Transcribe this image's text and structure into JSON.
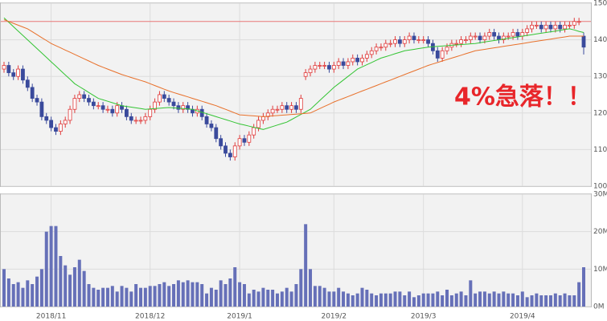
{
  "chart_data": [
    {
      "type": "candlestick",
      "annotation": "4%急落！！",
      "up_color": "#e03a3a",
      "down_color": "#3a4a9c",
      "hline": 145,
      "hline_color": "#e87878",
      "ylim": [
        100,
        150
      ],
      "yticks": [
        100,
        110,
        120,
        130,
        140,
        150
      ],
      "grid": true,
      "open": [
        132,
        133,
        131,
        130,
        132,
        129,
        127,
        124,
        123,
        119,
        118,
        116,
        115,
        117,
        118,
        121,
        124,
        125,
        124,
        123,
        122,
        122,
        121,
        121,
        120,
        122,
        121,
        119,
        118,
        118,
        118,
        119,
        121,
        123,
        125,
        124,
        123,
        122,
        121,
        122,
        121,
        120,
        121,
        119,
        117,
        116,
        113,
        111,
        109,
        108,
        111,
        113,
        112,
        114,
        116,
        118,
        119,
        120,
        121,
        121,
        122,
        121,
        122,
        121,
        130,
        131,
        132,
        133,
        133,
        133,
        132,
        133,
        134,
        133,
        134,
        135,
        134,
        135,
        136,
        137,
        138,
        138,
        139,
        139,
        140,
        139,
        140,
        141,
        140,
        140,
        140,
        139,
        137,
        135,
        137,
        138,
        139,
        139,
        140,
        140,
        141,
        141,
        140,
        141,
        142,
        141,
        140,
        141,
        141,
        142,
        141,
        142,
        143,
        144,
        144,
        143,
        144,
        143,
        144,
        143,
        144,
        144,
        145,
        141
      ],
      "high": [
        134,
        134,
        132,
        133,
        133,
        130,
        128,
        125,
        124,
        120,
        119,
        117,
        118,
        119,
        122,
        125,
        126,
        126,
        125,
        124,
        123,
        123,
        122,
        122,
        123,
        123,
        122,
        120,
        119,
        119,
        120,
        122,
        124,
        126,
        126,
        125,
        124,
        123,
        123,
        123,
        122,
        122,
        122,
        120,
        118,
        117,
        114,
        112,
        110,
        112,
        114,
        114,
        115,
        117,
        119,
        120,
        121,
        122,
        122,
        123,
        123,
        123,
        123,
        125,
        132,
        133,
        134,
        134,
        134,
        134,
        134,
        135,
        135,
        135,
        136,
        136,
        136,
        137,
        138,
        139,
        139,
        140,
        140,
        141,
        141,
        141,
        142,
        142,
        141,
        141,
        141,
        140,
        138,
        138,
        139,
        140,
        140,
        141,
        141,
        142,
        142,
        142,
        142,
        143,
        143,
        142,
        142,
        142,
        143,
        143,
        143,
        144,
        145,
        145,
        145,
        145,
        145,
        145,
        145,
        145,
        145,
        146,
        146,
        142
      ],
      "low": [
        131,
        130,
        129,
        129,
        128,
        126,
        123,
        122,
        118,
        117,
        115,
        114,
        114,
        116,
        117,
        120,
        123,
        123,
        122,
        121,
        121,
        120,
        120,
        119,
        119,
        120,
        118,
        117,
        117,
        117,
        117,
        118,
        120,
        122,
        123,
        122,
        121,
        120,
        120,
        120,
        119,
        119,
        118,
        116,
        115,
        112,
        110,
        108,
        107,
        107,
        110,
        111,
        111,
        113,
        115,
        117,
        118,
        119,
        120,
        120,
        120,
        120,
        120,
        120,
        129,
        130,
        131,
        132,
        132,
        131,
        131,
        132,
        132,
        132,
        133,
        133,
        133,
        134,
        135,
        136,
        137,
        137,
        138,
        138,
        138,
        138,
        139,
        139,
        139,
        139,
        138,
        136,
        134,
        134,
        136,
        137,
        138,
        138,
        139,
        139,
        140,
        139,
        139,
        140,
        140,
        139,
        139,
        140,
        140,
        140,
        140,
        141,
        142,
        143,
        142,
        142,
        142,
        142,
        142,
        142,
        143,
        143,
        144,
        136
      ],
      "close": [
        133,
        131,
        130,
        132,
        129,
        127,
        124,
        123,
        119,
        118,
        116,
        115,
        117,
        118,
        121,
        124,
        125,
        124,
        123,
        122,
        122,
        121,
        121,
        120,
        122,
        121,
        119,
        118,
        118,
        118,
        119,
        121,
        123,
        125,
        124,
        123,
        122,
        121,
        122,
        121,
        120,
        121,
        119,
        117,
        116,
        113,
        111,
        109,
        108,
        111,
        113,
        112,
        114,
        116,
        118,
        119,
        120,
        121,
        121,
        122,
        121,
        122,
        121,
        124,
        131,
        132,
        133,
        133,
        133,
        132,
        133,
        134,
        133,
        134,
        135,
        134,
        135,
        136,
        137,
        138,
        138,
        139,
        139,
        140,
        139,
        140,
        141,
        140,
        140,
        140,
        139,
        137,
        135,
        137,
        138,
        139,
        139,
        140,
        140,
        141,
        141,
        140,
        141,
        142,
        141,
        140,
        141,
        141,
        142,
        141,
        142,
        143,
        144,
        144,
        143,
        144,
        143,
        144,
        143,
        144,
        144,
        145,
        145,
        138
      ],
      "ma_lines": [
        {
          "color": "#33c433",
          "values": [
            146,
            144.8,
            143.6,
            142.4,
            141.2,
            140,
            138.8,
            137.6,
            136.4,
            135.2,
            134,
            132.8,
            131.6,
            130.4,
            129.2,
            128,
            127.2,
            126.4,
            125.6,
            124.8,
            124,
            123.6,
            123.2,
            122.8,
            122.4,
            122,
            121.8,
            121.6,
            121.4,
            121.2,
            121,
            121.1,
            121.2,
            121.3,
            121.4,
            121.5,
            121.4,
            121.3,
            121.2,
            121.1,
            121,
            120.6,
            120.2,
            119.8,
            119.4,
            119,
            118.6,
            118.2,
            117.8,
            117.4,
            117,
            116.7,
            116.4,
            116.1,
            115.8,
            115.5,
            115.9,
            116.3,
            116.7,
            117.1,
            117.5,
            118.2,
            118.9,
            119.6,
            120.3,
            121,
            122.2,
            123.4,
            124.6,
            125.8,
            127,
            128,
            129,
            130,
            131,
            132,
            132.6,
            133.2,
            133.8,
            134.4,
            135,
            135.4,
            135.8,
            136.2,
            136.6,
            137,
            137.2,
            137.4,
            137.6,
            137.8,
            138,
            138.1,
            138.2,
            138.3,
            138.4,
            138.5,
            138.6,
            138.7,
            138.8,
            138.9,
            139,
            139.2,
            139.4,
            139.6,
            139.8,
            140,
            140.2,
            140.4,
            140.6,
            140.8,
            141,
            141.2,
            141.4,
            141.6,
            141.8,
            142,
            142.2,
            142.4,
            142.6,
            142.8,
            143,
            142.7,
            142.3,
            142
          ]
        },
        {
          "color": "#e8702a",
          "values": [
            145.5,
            145,
            144.5,
            144,
            143.5,
            143,
            142.2,
            141.4,
            140.6,
            139.8,
            139,
            138.4,
            137.8,
            137.2,
            136.6,
            136,
            135.4,
            134.8,
            134.2,
            133.6,
            133,
            132.5,
            132,
            131.5,
            131,
            130.5,
            130.1,
            129.7,
            129.3,
            128.9,
            128.5,
            128,
            127.5,
            127,
            126.5,
            126,
            125.6,
            125.2,
            124.8,
            124.4,
            124,
            123.6,
            123.2,
            122.8,
            122.4,
            122,
            121.5,
            121,
            120.5,
            120,
            119.5,
            119.4,
            119.3,
            119.2,
            119.1,
            119,
            119.1,
            119.2,
            119.3,
            119.4,
            119.5,
            119.6,
            119.7,
            119.8,
            119.9,
            120,
            120.6,
            121.2,
            121.8,
            122.4,
            123,
            123.5,
            124,
            124.5,
            125,
            125.5,
            126,
            126.5,
            127,
            127.5,
            128,
            128.5,
            129,
            129.5,
            130,
            130.5,
            131,
            131.5,
            132,
            132.5,
            133,
            133.4,
            133.8,
            134.2,
            134.6,
            135,
            135.4,
            135.8,
            136.2,
            136.6,
            137,
            137.2,
            137.4,
            137.6,
            137.8,
            138,
            138.2,
            138.4,
            138.6,
            138.8,
            139,
            139.2,
            139.4,
            139.6,
            139.8,
            140,
            140.2,
            140.4,
            140.6,
            140.8,
            141,
            141,
            141,
            141
          ]
        }
      ]
    },
    {
      "type": "bar",
      "color": "#6670b8",
      "categories": [
        null,
        null,
        null,
        null,
        null,
        null,
        null,
        null,
        null,
        null,
        "2018/11",
        null,
        null,
        null,
        null,
        null,
        null,
        null,
        null,
        null,
        null,
        null,
        null,
        null,
        null,
        null,
        null,
        null,
        null,
        null,
        null,
        "2018/12",
        null,
        null,
        null,
        null,
        null,
        null,
        null,
        null,
        null,
        null,
        null,
        null,
        null,
        null,
        null,
        null,
        null,
        null,
        "2019/1",
        null,
        null,
        null,
        null,
        null,
        null,
        null,
        null,
        null,
        null,
        null,
        null,
        null,
        null,
        null,
        null,
        null,
        null,
        null,
        "2019/2",
        null,
        null,
        null,
        null,
        null,
        null,
        null,
        null,
        null,
        null,
        null,
        null,
        null,
        null,
        null,
        null,
        null,
        null,
        "2019/3",
        null,
        null,
        null,
        null,
        null,
        null,
        null,
        null,
        null,
        null,
        null,
        null,
        null,
        null,
        null,
        null,
        null,
        null,
        null,
        null,
        "2019/4",
        null,
        null,
        null,
        null,
        null,
        null,
        null,
        null,
        null,
        null,
        null,
        null,
        null
      ],
      "values": [
        10000000.0,
        7500000.0,
        6000000.0,
        6500000.0,
        5000000.0,
        7000000.0,
        6000000.0,
        8000000.0,
        10000000.0,
        20000000.0,
        21500000.0,
        21500000.0,
        13500000.0,
        11000000.0,
        8500000.0,
        10500000.0,
        12500000.0,
        9500000.0,
        6000000.0,
        5000000.0,
        4500000.0,
        5000000.0,
        5000000.0,
        5500000.0,
        4000000.0,
        5500000.0,
        5000000.0,
        4000000.0,
        6000000.0,
        5000000.0,
        5000000.0,
        5500000.0,
        5500000.0,
        6000000.0,
        6500000.0,
        5500000.0,
        6000000.0,
        7000000.0,
        6500000.0,
        7000000.0,
        6500000.0,
        6500000.0,
        6000000.0,
        3500000.0,
        5000000.0,
        4500000.0,
        7000000.0,
        6000000.0,
        7500000.0,
        10500000.0,
        6500000.0,
        6000000.0,
        3500000.0,
        4500000.0,
        4000000.0,
        5000000.0,
        4500000.0,
        4500000.0,
        3500000.0,
        4000000.0,
        5000000.0,
        4000000.0,
        6000000.0,
        10000000.0,
        22000000.0,
        10000000.0,
        5500000.0,
        5500000.0,
        5000000.0,
        4000000.0,
        4000000.0,
        5000000.0,
        4000000.0,
        3500000.0,
        3000000.0,
        3500000.0,
        5000000.0,
        4500000.0,
        3500000.0,
        3000000.0,
        3500000.0,
        3500000.0,
        3500000.0,
        4000000.0,
        4000000.0,
        3000000.0,
        4000000.0,
        2500000.0,
        3000000.0,
        3500000.0,
        3500000.0,
        3500000.0,
        4000000.0,
        3000000.0,
        4500000.0,
        3000000.0,
        3500000.0,
        4000000.0,
        3000000.0,
        7000000.0,
        3500000.0,
        4000000.0,
        4000000.0,
        3500000.0,
        4000000.0,
        3500000.0,
        4000000.0,
        3500000.0,
        3500000.0,
        3000000.0,
        4000000.0,
        2500000.0,
        3000000.0,
        3500000.0,
        3000000.0,
        3000000.0,
        3000000.0,
        3500000.0,
        3000000.0,
        3500000.0,
        3000000.0,
        3000000.0,
        6500000.0,
        10500000.0
      ],
      "ylim": [
        0,
        30000000
      ],
      "yticks": [
        {
          "value": 0,
          "label": "0M"
        },
        {
          "value": 10000000,
          "label": "10M"
        },
        {
          "value": 20000000,
          "label": "20M"
        },
        {
          "value": 30000000,
          "label": "30M"
        }
      ],
      "grid": true
    }
  ]
}
